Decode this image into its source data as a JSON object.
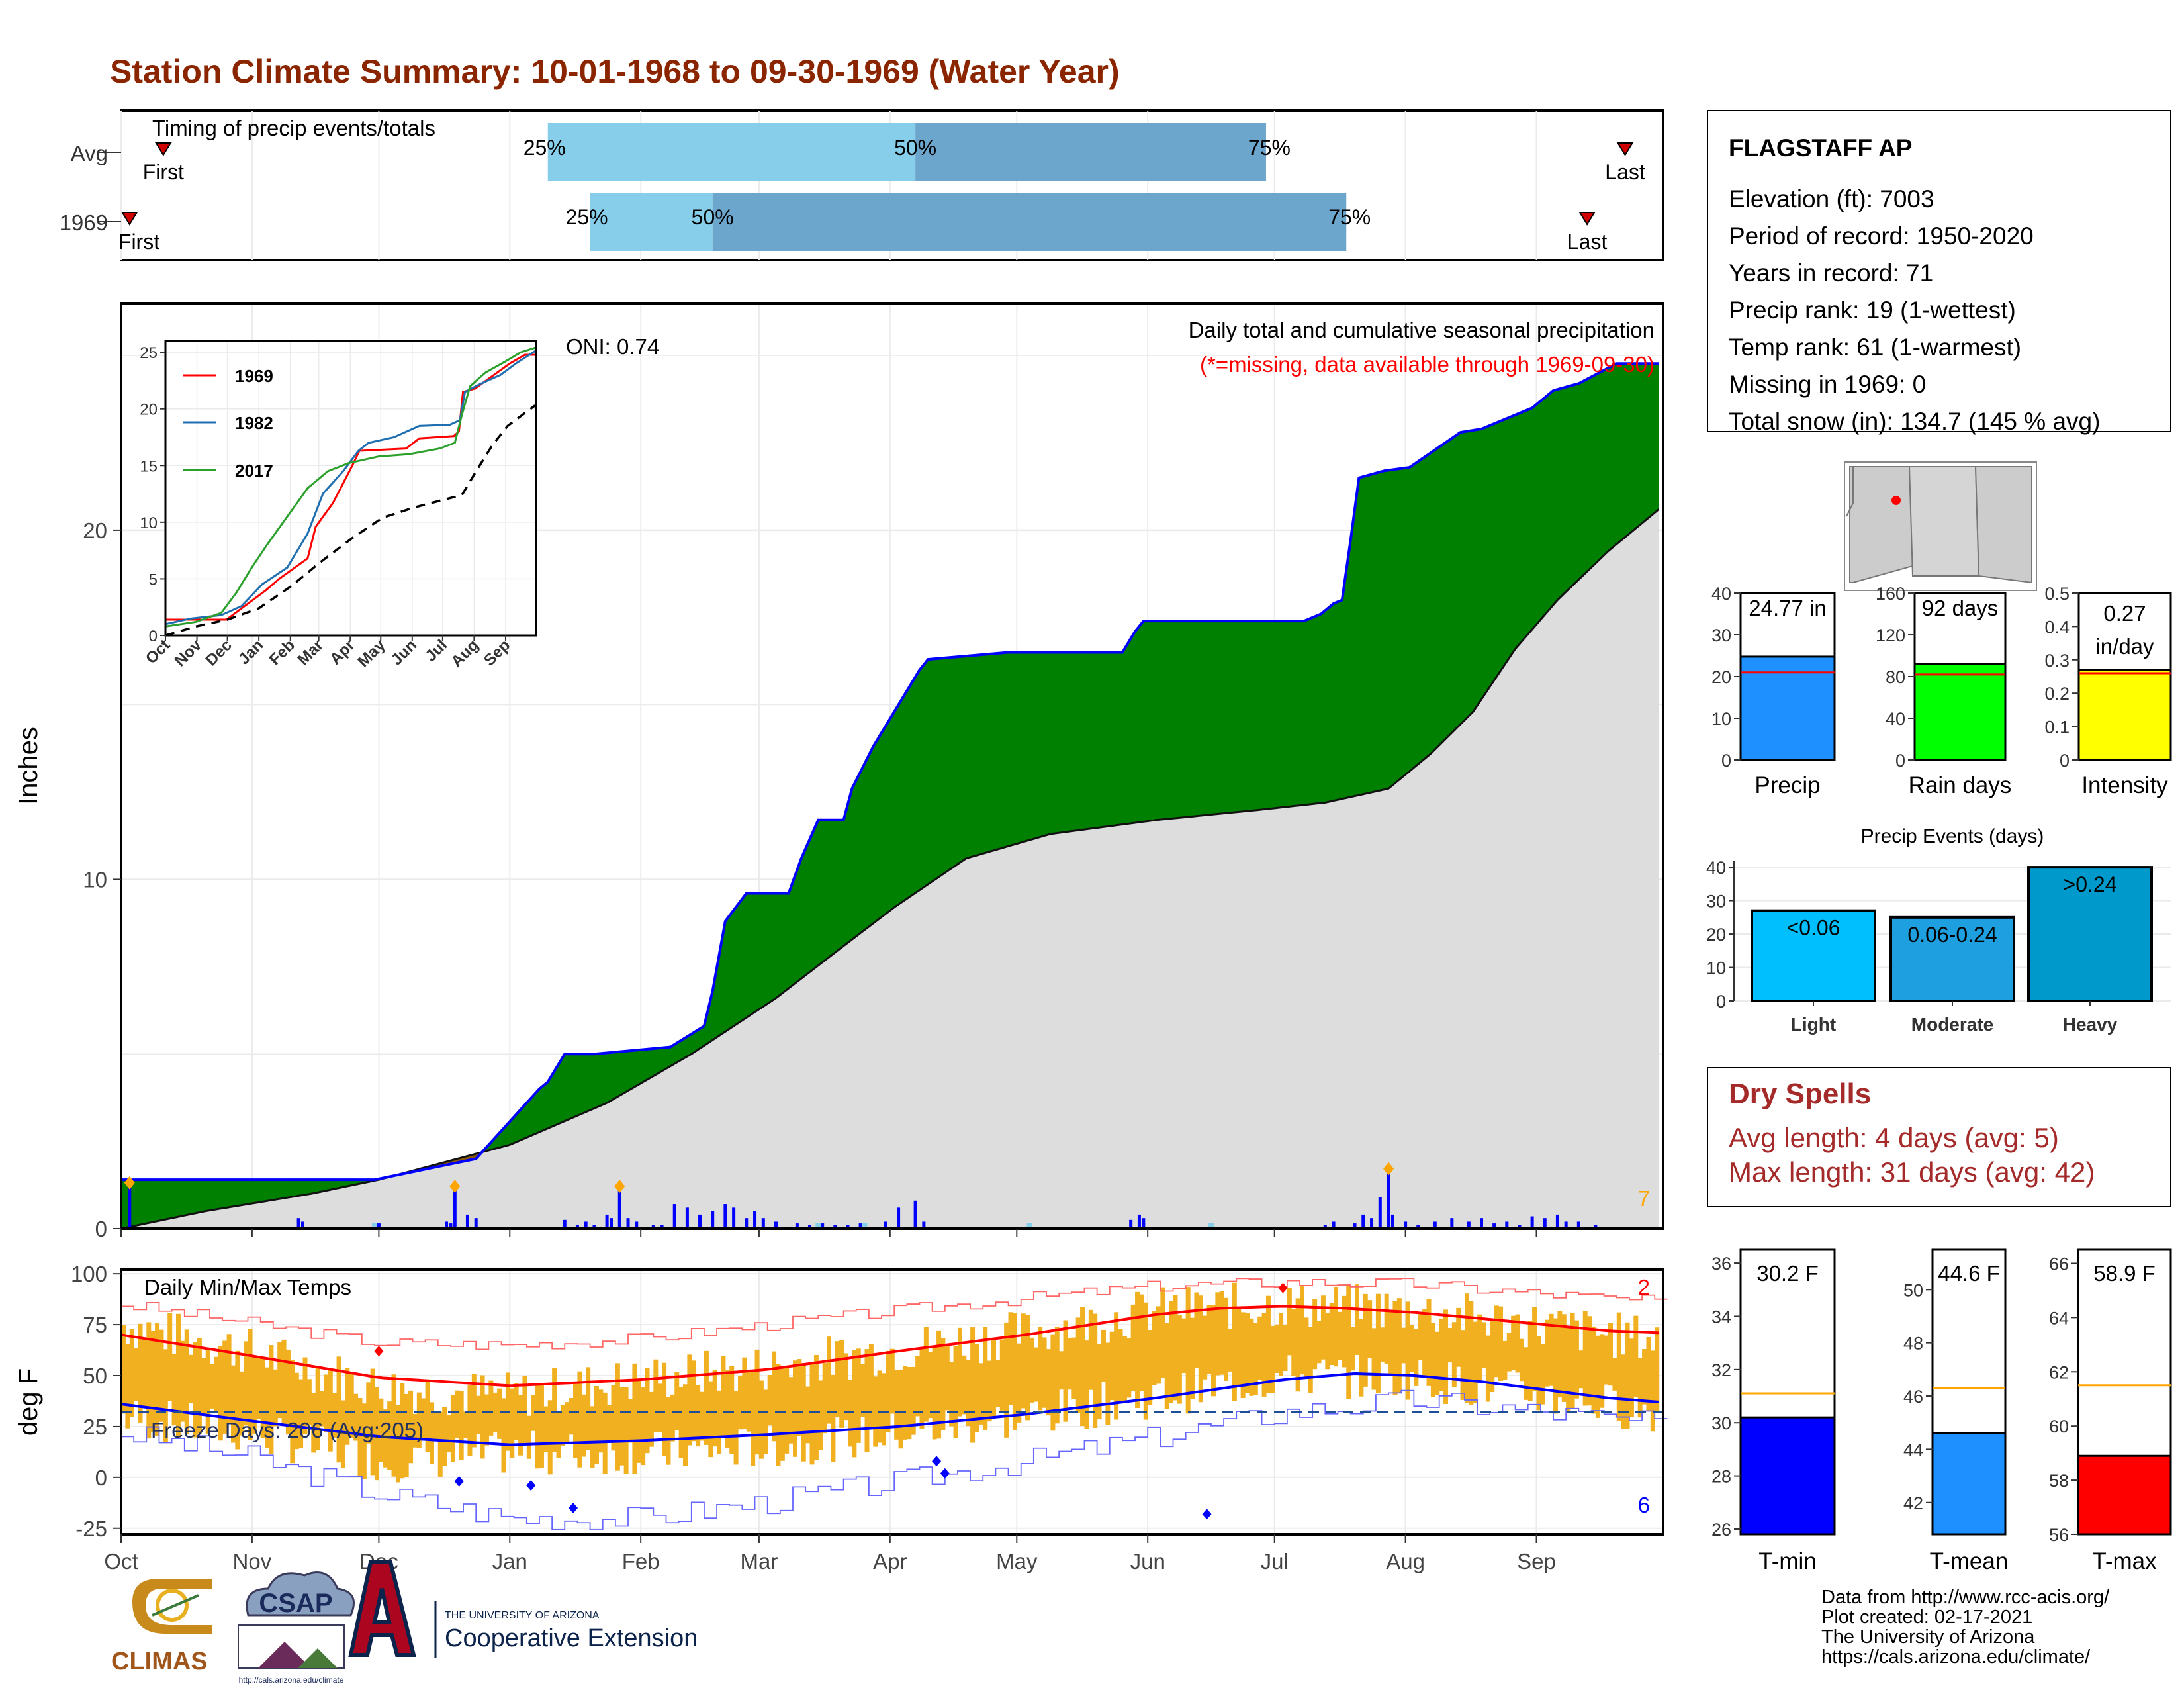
{
  "title": "Station Climate Summary: 10-01-1968 to 09-30-1969 (Water Year)",
  "months": [
    "Oct",
    "Nov",
    "Dec",
    "Jan",
    "Feb",
    "Mar",
    "Apr",
    "May",
    "Jun",
    "Jul",
    "Aug",
    "Sep"
  ],
  "colors": {
    "title": "#8B2500",
    "light_blue": "#87CEEB",
    "mid_blue": "#6CA6CD",
    "precip_green": "#008000",
    "precip_brown": "#8B5A00",
    "normal_gray": "#DDDDDD",
    "outline_blue": "#0000FF",
    "temp_bar": "#F0B020",
    "tmax_line": "#FF0000",
    "tmin_line": "#0000FF",
    "dry_spell_text": "#A52A2A"
  },
  "timing": {
    "title": "Timing of precip events/totals",
    "rows": [
      {
        "label": "Avg",
        "first_label": "First",
        "last_label": "Last",
        "p25": "25%",
        "p50": "50%",
        "p75": "75%",
        "first_day": 10,
        "last_day": 356,
        "d25": 101,
        "d50": 188,
        "d75": 271
      },
      {
        "label": "1969",
        "first_label": "First",
        "last_label": "Last",
        "p25": "25%",
        "p50": "50%",
        "p75": "75%",
        "first_day": 2,
        "last_day": 347,
        "d25": 111,
        "d50": 140,
        "d75": 290
      }
    ]
  },
  "precip": {
    "ylabel": "Inches",
    "header": "Daily total and cumulative seasonal precipitation",
    "missing_note": "(*=missing, data available through 1969-09-30)",
    "oni": "ONI: 0.74",
    "count_label": "7",
    "yticks": [
      0,
      10,
      20
    ],
    "ylim": [
      0,
      26.5
    ],
    "cumulative_1969": [
      [
        0,
        1.4
      ],
      [
        60,
        1.4
      ],
      [
        84,
        2.0
      ],
      [
        99,
        4.0
      ],
      [
        101,
        4.2
      ],
      [
        105,
        5.0
      ],
      [
        112,
        5.0
      ],
      [
        130,
        5.2
      ],
      [
        138,
        5.8
      ],
      [
        140,
        6.8
      ],
      [
        143,
        8.8
      ],
      [
        148,
        9.6
      ],
      [
        158,
        9.6
      ],
      [
        161,
        10.6
      ],
      [
        165,
        11.7
      ],
      [
        171,
        11.7
      ],
      [
        173,
        12.6
      ],
      [
        178,
        13.8
      ],
      [
        184,
        15.0
      ],
      [
        189,
        16.0
      ],
      [
        191,
        16.3
      ],
      [
        210,
        16.5
      ],
      [
        216,
        16.5
      ],
      [
        237,
        16.5
      ],
      [
        240,
        17.1
      ],
      [
        242,
        17.4
      ],
      [
        250,
        17.4
      ],
      [
        280,
        17.4
      ],
      [
        284,
        17.6
      ],
      [
        287,
        17.9
      ],
      [
        289,
        18.0
      ],
      [
        291,
        19.7
      ],
      [
        293,
        21.5
      ],
      [
        299,
        21.7
      ],
      [
        305,
        21.8
      ],
      [
        317,
        22.8
      ],
      [
        322,
        22.9
      ],
      [
        334,
        23.5
      ],
      [
        339,
        24.0
      ],
      [
        345,
        24.2
      ],
      [
        354,
        24.77
      ],
      [
        364,
        24.77
      ]
    ],
    "normal_cumulative": [
      [
        0,
        0.0
      ],
      [
        20,
        0.5
      ],
      [
        45,
        1.0
      ],
      [
        61,
        1.4
      ],
      [
        92,
        2.4
      ],
      [
        115,
        3.6
      ],
      [
        135,
        5.0
      ],
      [
        155,
        6.6
      ],
      [
        170,
        8.0
      ],
      [
        183,
        9.2
      ],
      [
        200,
        10.6
      ],
      [
        220,
        11.3
      ],
      [
        245,
        11.7
      ],
      [
        270,
        12.0
      ],
      [
        285,
        12.2
      ],
      [
        300,
        12.6
      ],
      [
        310,
        13.6
      ],
      [
        320,
        14.8
      ],
      [
        330,
        16.6
      ],
      [
        340,
        18.0
      ],
      [
        352,
        19.4
      ],
      [
        364,
        20.6
      ]
    ],
    "daily_bars": [
      [
        2,
        1.2
      ],
      [
        42,
        0.3
      ],
      [
        43,
        0.2
      ],
      [
        61,
        0.15
      ],
      [
        77,
        0.2
      ],
      [
        78,
        0.15
      ],
      [
        79,
        1.1
      ],
      [
        82,
        0.4
      ],
      [
        84,
        0.3
      ],
      [
        105,
        0.25
      ],
      [
        108,
        0.1
      ],
      [
        110,
        0.2
      ],
      [
        112,
        0.1
      ],
      [
        115,
        0.4
      ],
      [
        116,
        0.3
      ],
      [
        118,
        1.1
      ],
      [
        120,
        0.3
      ],
      [
        122,
        0.2
      ],
      [
        126,
        0.1
      ],
      [
        128,
        0.1
      ],
      [
        131,
        0.7
      ],
      [
        134,
        0.6
      ],
      [
        137,
        0.4
      ],
      [
        140,
        0.5
      ],
      [
        143,
        0.7
      ],
      [
        145,
        0.6
      ],
      [
        148,
        0.3
      ],
      [
        150,
        0.5
      ],
      [
        152,
        0.3
      ],
      [
        155,
        0.2
      ],
      [
        160,
        0.15
      ],
      [
        163,
        0.1
      ],
      [
        166,
        0.15
      ],
      [
        169,
        0.1
      ],
      [
        172,
        0.1
      ],
      [
        175,
        0.15
      ],
      [
        181,
        0.2
      ],
      [
        184,
        0.6
      ],
      [
        188,
        0.8
      ],
      [
        190,
        0.2
      ],
      [
        209,
        0.05
      ],
      [
        211,
        0.05
      ],
      [
        224,
        0.05
      ],
      [
        239,
        0.25
      ],
      [
        241,
        0.4
      ],
      [
        242,
        0.3
      ],
      [
        285,
        0.1
      ],
      [
        287,
        0.2
      ],
      [
        292,
        0.15
      ],
      [
        294,
        0.4
      ],
      [
        296,
        0.3
      ],
      [
        298,
        0.9
      ],
      [
        300,
        1.6
      ],
      [
        301,
        0.4
      ],
      [
        304,
        0.2
      ],
      [
        307,
        0.1
      ],
      [
        311,
        0.2
      ],
      [
        315,
        0.3
      ],
      [
        319,
        0.2
      ],
      [
        322,
        0.3
      ],
      [
        325,
        0.15
      ],
      [
        328,
        0.2
      ],
      [
        331,
        0.1
      ],
      [
        334,
        0.35
      ],
      [
        337,
        0.3
      ],
      [
        340,
        0.4
      ],
      [
        342,
        0.2
      ],
      [
        345,
        0.2
      ],
      [
        349,
        0.1
      ]
    ]
  },
  "inset": {
    "legend": [
      "1969",
      "1982",
      "2017"
    ],
    "colors": [
      "#FF0000",
      "#1F6FB0",
      "#2CA02C"
    ],
    "yticks": [
      0,
      5,
      10,
      15,
      20,
      25
    ],
    "ylim": [
      0,
      26
    ],
    "series": [
      {
        "name": "1969",
        "points": [
          [
            0,
            1.4
          ],
          [
            60,
            1.4
          ],
          [
            99,
            4.0
          ],
          [
            112,
            5.0
          ],
          [
            140,
            6.8
          ],
          [
            148,
            9.6
          ],
          [
            165,
            11.7
          ],
          [
            184,
            15.0
          ],
          [
            191,
            16.3
          ],
          [
            237,
            16.5
          ],
          [
            250,
            17.4
          ],
          [
            284,
            17.6
          ],
          [
            289,
            18.0
          ],
          [
            291,
            19.7
          ],
          [
            293,
            21.5
          ],
          [
            305,
            21.8
          ],
          [
            322,
            22.9
          ],
          [
            339,
            24.0
          ],
          [
            354,
            24.77
          ],
          [
            364,
            24.77
          ]
        ]
      },
      {
        "name": "1982",
        "points": [
          [
            0,
            1.0
          ],
          [
            25,
            1.5
          ],
          [
            55,
            1.8
          ],
          [
            75,
            2.6
          ],
          [
            95,
            4.5
          ],
          [
            120,
            6.0
          ],
          [
            140,
            9.0
          ],
          [
            155,
            12.5
          ],
          [
            175,
            14.5
          ],
          [
            190,
            16.3
          ],
          [
            200,
            17.0
          ],
          [
            225,
            17.5
          ],
          [
            250,
            18.5
          ],
          [
            280,
            18.6
          ],
          [
            290,
            19.0
          ],
          [
            295,
            21.5
          ],
          [
            310,
            22.2
          ],
          [
            330,
            23.0
          ],
          [
            345,
            24.0
          ],
          [
            364,
            25.1
          ]
        ]
      },
      {
        "name": "2017",
        "points": [
          [
            0,
            0.8
          ],
          [
            30,
            1.2
          ],
          [
            55,
            2.0
          ],
          [
            70,
            3.8
          ],
          [
            85,
            6.0
          ],
          [
            100,
            8.0
          ],
          [
            120,
            10.5
          ],
          [
            140,
            13.0
          ],
          [
            160,
            14.5
          ],
          [
            180,
            15.2
          ],
          [
            210,
            15.8
          ],
          [
            240,
            16.0
          ],
          [
            270,
            16.5
          ],
          [
            285,
            17.0
          ],
          [
            292,
            19.5
          ],
          [
            300,
            22.0
          ],
          [
            315,
            23.2
          ],
          [
            335,
            24.2
          ],
          [
            350,
            25.0
          ],
          [
            364,
            25.4
          ]
        ]
      }
    ],
    "avg_points": [
      [
        0,
        0
      ],
      [
        30,
        0.8
      ],
      [
        61,
        1.4
      ],
      [
        92,
        2.4
      ],
      [
        123,
        4.3
      ],
      [
        153,
        6.5
      ],
      [
        184,
        8.6
      ],
      [
        214,
        10.4
      ],
      [
        245,
        11.3
      ],
      [
        275,
        12.0
      ],
      [
        292,
        12.4
      ],
      [
        306,
        14.5
      ],
      [
        322,
        16.8
      ],
      [
        337,
        18.5
      ],
      [
        352,
        19.5
      ],
      [
        364,
        20.3
      ]
    ]
  },
  "temps": {
    "ylabel": "deg F",
    "title": "Daily Min/Max Temps",
    "freeze_label": "Freeze Days: 206 (Avg:205)",
    "high_record_count": "2",
    "low_record_count": "6",
    "yticks": [
      -25,
      0,
      25,
      50,
      75,
      100
    ],
    "ylim": [
      -28,
      102
    ],
    "freeze_line": 32,
    "normal_tmax": [
      [
        0,
        70
      ],
      [
        30,
        60
      ],
      [
        61,
        49
      ],
      [
        92,
        45
      ],
      [
        123,
        48
      ],
      [
        153,
        53
      ],
      [
        184,
        62
      ],
      [
        214,
        70
      ],
      [
        245,
        80
      ],
      [
        260,
        83
      ],
      [
        275,
        84
      ],
      [
        290,
        83
      ],
      [
        306,
        81
      ],
      [
        322,
        78
      ],
      [
        337,
        75
      ],
      [
        352,
        72
      ],
      [
        364,
        71
      ]
    ],
    "normal_tmin": [
      [
        0,
        36
      ],
      [
        30,
        28
      ],
      [
        61,
        20
      ],
      [
        92,
        16
      ],
      [
        123,
        18
      ],
      [
        153,
        21
      ],
      [
        184,
        25
      ],
      [
        214,
        31
      ],
      [
        245,
        39
      ],
      [
        275,
        48
      ],
      [
        292,
        51
      ],
      [
        306,
        50
      ],
      [
        322,
        47
      ],
      [
        337,
        43
      ],
      [
        352,
        39
      ],
      [
        364,
        37
      ]
    ],
    "record_high": [
      [
        0,
        85
      ],
      [
        30,
        76
      ],
      [
        61,
        66
      ],
      [
        92,
        65
      ],
      [
        123,
        68
      ],
      [
        153,
        75
      ],
      [
        184,
        82
      ],
      [
        214,
        88
      ],
      [
        245,
        94
      ],
      [
        275,
        96
      ],
      [
        306,
        95
      ],
      [
        337,
        90
      ],
      [
        364,
        86
      ]
    ],
    "record_low": [
      [
        0,
        22
      ],
      [
        30,
        10
      ],
      [
        61,
        -8
      ],
      [
        92,
        -20
      ],
      [
        123,
        -20
      ],
      [
        153,
        -12
      ],
      [
        184,
        -2
      ],
      [
        214,
        8
      ],
      [
        245,
        20
      ],
      [
        275,
        32
      ],
      [
        306,
        38
      ],
      [
        337,
        32
      ],
      [
        364,
        26
      ]
    ],
    "observed_tmax": [
      [
        0,
        75
      ],
      [
        30,
        62
      ],
      [
        61,
        44
      ],
      [
        92,
        40
      ],
      [
        123,
        48
      ],
      [
        153,
        54
      ],
      [
        184,
        63
      ],
      [
        214,
        71
      ],
      [
        245,
        82
      ],
      [
        275,
        85
      ],
      [
        306,
        82
      ],
      [
        337,
        74
      ],
      [
        364,
        67
      ]
    ],
    "observed_tmin": [
      [
        0,
        30
      ],
      [
        30,
        22
      ],
      [
        61,
        8
      ],
      [
        92,
        12
      ],
      [
        123,
        12
      ],
      [
        153,
        15
      ],
      [
        184,
        22
      ],
      [
        214,
        30
      ],
      [
        245,
        40
      ],
      [
        275,
        50
      ],
      [
        306,
        49
      ],
      [
        337,
        40
      ],
      [
        364,
        32
      ]
    ]
  },
  "station": {
    "name": "FLAGSTAFF AP",
    "lines": [
      "Elevation (ft): 7003",
      "Period of record: 1950-2020",
      "Years in record: 71",
      "Precip rank: 19 (1-wettest)",
      "Temp rank: 61 (1-warmest)",
      "Missing in 1969: 0",
      "Total snow (in): 134.7 (145 % avg)"
    ]
  },
  "small_bars": [
    {
      "label": "Precip",
      "value_text": "24.77 in",
      "value": 24.77,
      "avg": 21,
      "ymax": 40,
      "yticks": [
        0,
        10,
        20,
        30,
        40
      ],
      "color": "#1E90FF"
    },
    {
      "label": "Rain days",
      "value_text": "92 days",
      "value": 92,
      "avg": 82,
      "ymax": 160,
      "yticks": [
        0,
        40,
        80,
        120,
        160
      ],
      "color": "#00FF00"
    },
    {
      "label": "Intensity",
      "value_text": "0.27",
      "value_text2": "in/day",
      "value": 0.27,
      "avg": 0.26,
      "ymax": 0.5,
      "yticks": [
        0.0,
        0.1,
        0.2,
        0.3,
        0.4,
        0.5
      ],
      "color": "#FFFF00"
    }
  ],
  "events": {
    "title": "Precip Events (days)",
    "yticks": [
      0,
      10,
      20,
      30,
      40
    ],
    "ymax": 42,
    "bars": [
      {
        "category": "Light",
        "label": "<0.06",
        "value": 27,
        "color": "#00BFFF"
      },
      {
        "category": "Moderate",
        "label": "0.06-0.24",
        "value": 25,
        "color": "#1EA0E0"
      },
      {
        "category": "Heavy",
        "label": ">0.24",
        "value": 40,
        "color": "#0099CC"
      }
    ]
  },
  "dry_spells": {
    "title": "Dry Spells",
    "avg_line": "Avg length: 4 days (avg: 5)",
    "max_line": "Max length: 31 days (avg: 42)"
  },
  "temp_bars": [
    {
      "label": "T-min",
      "value_text": "30.2 F",
      "value": 30.2,
      "avg": 31.1,
      "ylim": [
        25.8,
        36.5
      ],
      "yticks": [
        26,
        28,
        30,
        32,
        34,
        36
      ],
      "color": "#0000FF"
    },
    {
      "label": "T-mean",
      "value_text": "44.6 F",
      "value": 44.6,
      "avg": 46.3,
      "ylim": [
        40.8,
        51.5
      ],
      "yticks": [
        42,
        44,
        46,
        48,
        50
      ],
      "color": "#1E90FF"
    },
    {
      "label": "T-max",
      "value_text": "58.9 F",
      "value": 58.9,
      "avg": 61.5,
      "ylim": [
        56,
        66.5
      ],
      "yticks": [
        56,
        58,
        60,
        62,
        64,
        66
      ],
      "color": "#FF0000"
    }
  ],
  "credits": [
    "Data from http://www.rcc-acis.org/",
    "Plot created: 02-17-2021",
    "The University of Arizona",
    "https://cals.arizona.edu/climate/"
  ],
  "logos": {
    "climas": "CLIMAS",
    "csap": "CSAP",
    "csap_url": "http://cals.arizona.edu/climate",
    "ua_small": "THE UNIVERSITY OF ARIZONA",
    "ua_big": "Cooperative Extension"
  }
}
